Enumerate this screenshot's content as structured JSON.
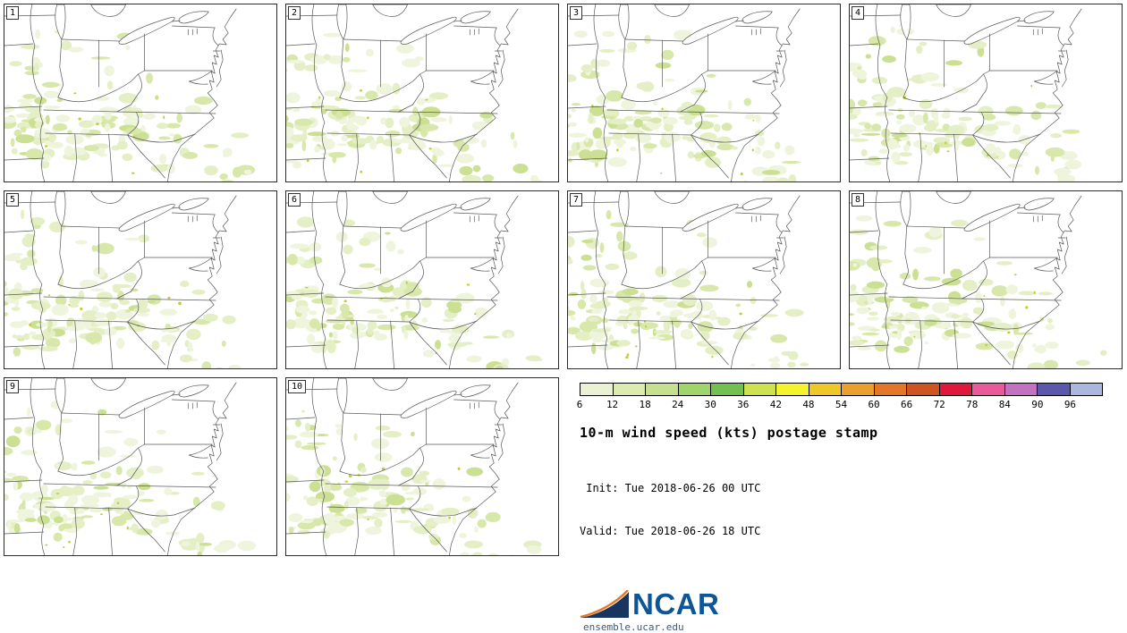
{
  "figure": {
    "title": "10-m wind speed (kts) postage stamp",
    "init_line": " Init: Tue 2018-06-26 00 UTC",
    "valid_line": "Valid: Tue 2018-06-26 18 UTC"
  },
  "panels": [
    {
      "label": "1"
    },
    {
      "label": "2"
    },
    {
      "label": "3"
    },
    {
      "label": "4"
    },
    {
      "label": "5"
    },
    {
      "label": "6"
    },
    {
      "label": "7"
    },
    {
      "label": "8"
    },
    {
      "label": "9"
    },
    {
      "label": "10"
    }
  ],
  "legend": {
    "units": "kts",
    "tick_labels": [
      "6",
      "12",
      "18",
      "24",
      "30",
      "36",
      "42",
      "48",
      "54",
      "60",
      "66",
      "72",
      "78",
      "84",
      "90",
      "96"
    ],
    "segment_colors": [
      "#eaf2d3",
      "#dcecb0",
      "#c5e18f",
      "#a0d46c",
      "#72bf54",
      "#cde24e",
      "#f4f32c",
      "#eec829",
      "#ea9f2e",
      "#e2772a",
      "#cf5520",
      "#e0193c",
      "#e85a9c",
      "#c372c2",
      "#5b57ab",
      "#abb7de"
    ]
  },
  "branding": {
    "logo_text": "NCAR",
    "url": "ensemble.ucar.edu",
    "logo_blue": "#0d5596",
    "swoosh_navy": "#17355e",
    "swoosh_orange": "#e87722"
  }
}
